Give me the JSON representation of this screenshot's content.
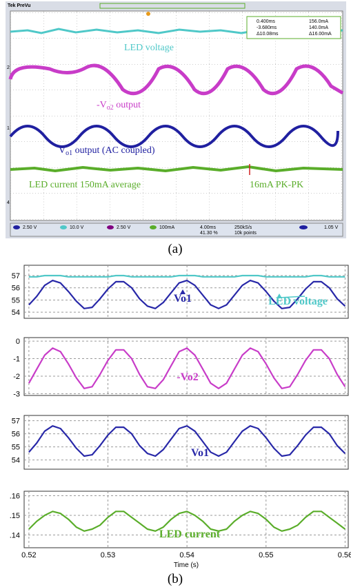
{
  "figure_a": {
    "brand": "Tek PreVu",
    "readout": [
      [
        "0.400ms",
        "156.0mA"
      ],
      [
        "-3.680ms",
        "140.0mA"
      ],
      [
        "Δ10.08ms",
        "Δ16.00mA"
      ]
    ],
    "channel_markers": [
      "2",
      "1",
      "4"
    ],
    "labels": {
      "led_voltage": "LED voltage",
      "vo2": {
        "main": "-V",
        "sub": "o2",
        "rest": " output"
      },
      "vo1": {
        "main": "V",
        "sub": "o1",
        "rest": " output (AC coupled)"
      },
      "led_current": "LED current 150mA average",
      "ripple": "16mA PK-PK"
    },
    "status": [
      "2.50 V",
      "10.0 V",
      "2.50 V",
      "100mA",
      "4.00ms",
      "41.30 %",
      "250kS/s",
      "10k points",
      "1.05 V"
    ]
  },
  "caption_a": "(a)",
  "caption_b": "(b)",
  "chart_data": [
    {
      "type": "line",
      "x": [
        0.52,
        0.521,
        0.522,
        0.523,
        0.524,
        0.525,
        0.526,
        0.527,
        0.528,
        0.529,
        0.53,
        0.531,
        0.532,
        0.533,
        0.534,
        0.535,
        0.536,
        0.537,
        0.538,
        0.539,
        0.54,
        0.541,
        0.542,
        0.543,
        0.544,
        0.545,
        0.546,
        0.547,
        0.548,
        0.549,
        0.55,
        0.551,
        0.552,
        0.553,
        0.554,
        0.555,
        0.556,
        0.557,
        0.558,
        0.559,
        0.56
      ],
      "xlim": [
        0.5194,
        0.5604
      ],
      "xticks": [
        0.52,
        0.53,
        0.54,
        0.55,
        0.56
      ],
      "ylim": [
        53.5,
        57.85
      ],
      "yticks": [
        54,
        55,
        56,
        57
      ],
      "grid": true,
      "series": [
        {
          "color": "#4fc8c8",
          "values": [
            56.9,
            56.9,
            57.0,
            57.0,
            57.0,
            56.9,
            56.9,
            56.9,
            56.9,
            56.9,
            56.9,
            57.0,
            57.0,
            56.9,
            56.9,
            56.9,
            56.9,
            56.9,
            56.9,
            57.0,
            57.0,
            57.0,
            56.9,
            56.9,
            56.9,
            56.9,
            56.9,
            57.0,
            57.0,
            57.0,
            56.9,
            56.9,
            56.9,
            56.9,
            56.9,
            56.9,
            57.0,
            57.0,
            56.9,
            56.9,
            56.9
          ]
        },
        {
          "color": "#2828a8",
          "values": [
            54.6,
            55.3,
            56.2,
            56.6,
            56.4,
            55.7,
            54.9,
            54.3,
            54.4,
            55.1,
            55.9,
            56.5,
            56.5,
            56.0,
            55.1,
            54.5,
            54.3,
            54.8,
            55.6,
            56.4,
            56.6,
            56.2,
            55.4,
            54.6,
            54.3,
            54.6,
            55.4,
            56.2,
            56.6,
            56.4,
            55.7,
            54.9,
            54.3,
            54.4,
            55.1,
            55.9,
            56.5,
            56.5,
            56.0,
            55.1,
            54.5
          ]
        }
      ],
      "annotations": [
        {
          "text": "Vo1",
          "color": "#2828a8"
        },
        {
          "text": "LED voltage",
          "color": "#4fc8c8"
        }
      ]
    },
    {
      "type": "line",
      "x": [
        0.52,
        0.521,
        0.522,
        0.523,
        0.524,
        0.525,
        0.526,
        0.527,
        0.528,
        0.529,
        0.53,
        0.531,
        0.532,
        0.533,
        0.534,
        0.535,
        0.536,
        0.537,
        0.538,
        0.539,
        0.54,
        0.541,
        0.542,
        0.543,
        0.544,
        0.545,
        0.546,
        0.547,
        0.548,
        0.549,
        0.55,
        0.551,
        0.552,
        0.553,
        0.554,
        0.555,
        0.556,
        0.557,
        0.558,
        0.559,
        0.56
      ],
      "xlim": [
        0.5194,
        0.5604
      ],
      "xticks": [
        0.52,
        0.53,
        0.54,
        0.55,
        0.56
      ],
      "ylim": [
        -3.1,
        0.2
      ],
      "yticks": [
        0,
        -1,
        -2,
        -3
      ],
      "grid": true,
      "series": [
        {
          "color": "#c83cc8",
          "values": [
            -2.4,
            -1.6,
            -0.8,
            -0.4,
            -0.6,
            -1.3,
            -2.1,
            -2.7,
            -2.6,
            -1.9,
            -1.1,
            -0.5,
            -0.5,
            -1.0,
            -1.9,
            -2.6,
            -2.7,
            -2.2,
            -1.4,
            -0.6,
            -0.4,
            -0.8,
            -1.6,
            -2.4,
            -2.7,
            -2.4,
            -1.6,
            -0.8,
            -0.4,
            -0.6,
            -1.3,
            -2.1,
            -2.7,
            -2.6,
            -1.9,
            -1.1,
            -0.5,
            -0.5,
            -1.0,
            -1.9,
            -2.6
          ]
        }
      ],
      "annotations": [
        {
          "text": "-Vo2",
          "color": "#c83cc8"
        }
      ]
    },
    {
      "type": "line",
      "x": [
        0.52,
        0.521,
        0.522,
        0.523,
        0.524,
        0.525,
        0.526,
        0.527,
        0.528,
        0.529,
        0.53,
        0.531,
        0.532,
        0.533,
        0.534,
        0.535,
        0.536,
        0.537,
        0.538,
        0.539,
        0.54,
        0.541,
        0.542,
        0.543,
        0.544,
        0.545,
        0.546,
        0.547,
        0.548,
        0.549,
        0.55,
        0.551,
        0.552,
        0.553,
        0.554,
        0.555,
        0.556,
        0.557,
        0.558,
        0.559,
        0.56
      ],
      "xlim": [
        0.5194,
        0.5604
      ],
      "xticks": [
        0.52,
        0.53,
        0.54,
        0.55,
        0.56
      ],
      "ylim": [
        53.3,
        57.4
      ],
      "yticks": [
        54,
        55,
        56,
        57
      ],
      "grid": true,
      "series": [
        {
          "color": "#2828a8",
          "values": [
            54.6,
            55.3,
            56.2,
            56.6,
            56.4,
            55.7,
            54.9,
            54.3,
            54.4,
            55.1,
            55.9,
            56.5,
            56.5,
            56.0,
            55.1,
            54.5,
            54.3,
            54.8,
            55.6,
            56.4,
            56.6,
            56.2,
            55.4,
            54.6,
            54.3,
            54.6,
            55.4,
            56.2,
            56.6,
            56.4,
            55.7,
            54.9,
            54.3,
            54.4,
            55.1,
            55.9,
            56.5,
            56.5,
            56.0,
            55.1,
            54.5
          ]
        }
      ],
      "annotations": [
        {
          "text": "Vo1",
          "color": "#2828a8"
        }
      ]
    },
    {
      "type": "line",
      "x": [
        0.52,
        0.521,
        0.522,
        0.523,
        0.524,
        0.525,
        0.526,
        0.527,
        0.528,
        0.529,
        0.53,
        0.531,
        0.532,
        0.533,
        0.534,
        0.535,
        0.536,
        0.537,
        0.538,
        0.539,
        0.54,
        0.541,
        0.542,
        0.543,
        0.544,
        0.545,
        0.546,
        0.547,
        0.548,
        0.549,
        0.55,
        0.551,
        0.552,
        0.553,
        0.554,
        0.555,
        0.556,
        0.557,
        0.558,
        0.559,
        0.56
      ],
      "xlim": [
        0.5194,
        0.5604
      ],
      "xticks": [
        0.52,
        0.53,
        0.54,
        0.55,
        0.56
      ],
      "ylim": [
        0.1335,
        0.1623
      ],
      "yticks": [
        {
          "value": 0.16,
          "label": ".16"
        },
        {
          "value": 0.15,
          "label": ".15"
        },
        {
          "value": 0.14,
          "label": ".14"
        }
      ],
      "grid": true,
      "xlabel": "Time (s)",
      "series": [
        {
          "color": "#5aad2a",
          "values": [
            0.143,
            0.147,
            0.15,
            0.152,
            0.151,
            0.148,
            0.144,
            0.142,
            0.143,
            0.145,
            0.149,
            0.152,
            0.152,
            0.149,
            0.146,
            0.143,
            0.142,
            0.144,
            0.148,
            0.151,
            0.152,
            0.15,
            0.147,
            0.143,
            0.142,
            0.143,
            0.147,
            0.15,
            0.152,
            0.151,
            0.148,
            0.144,
            0.142,
            0.143,
            0.145,
            0.149,
            0.152,
            0.152,
            0.149,
            0.146,
            0.143
          ]
        }
      ],
      "annotations": [
        {
          "text": "LED current",
          "color": "#5aad2a"
        }
      ]
    }
  ]
}
